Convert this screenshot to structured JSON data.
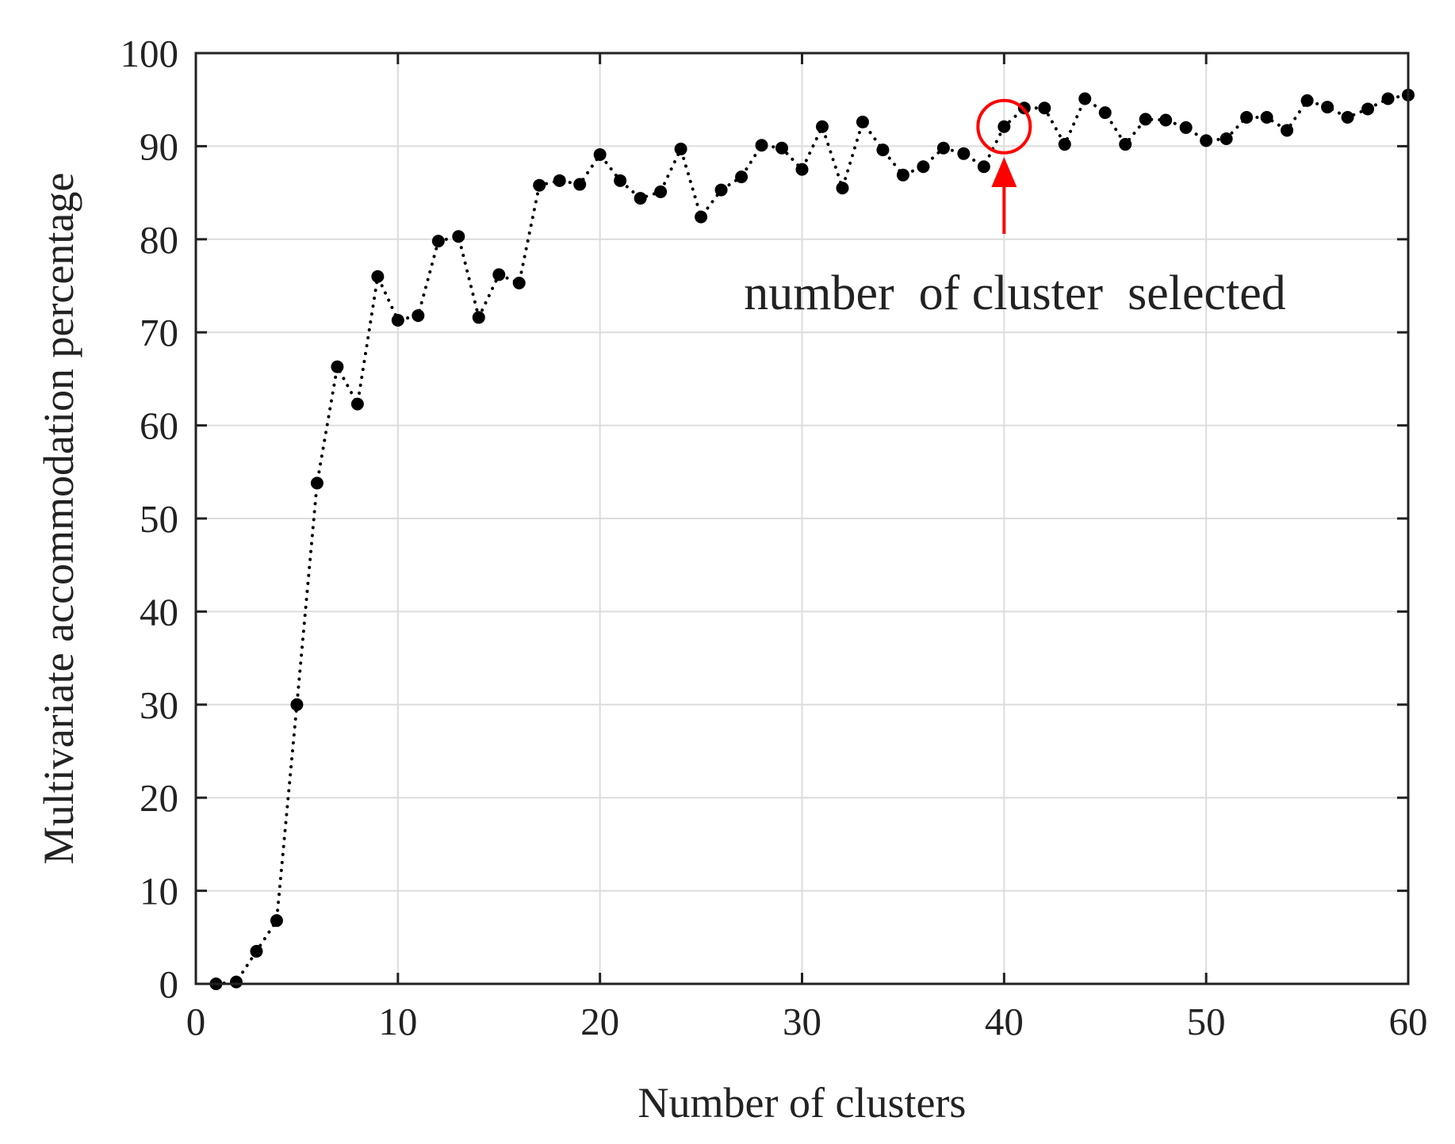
{
  "chart_data": {
    "type": "line",
    "title": "",
    "xlabel": "Number of clusters",
    "ylabel": "Multivariate accommodation percentage",
    "xlim": [
      0,
      60
    ],
    "ylim": [
      0,
      100
    ],
    "x_ticks": [
      0,
      10,
      20,
      30,
      40,
      50,
      60
    ],
    "x_tick_labels": [
      "0",
      "10",
      "20",
      "30",
      "40",
      "50",
      "60"
    ],
    "y_ticks": [
      0,
      10,
      20,
      30,
      40,
      50,
      60,
      70,
      80,
      90,
      100
    ],
    "y_tick_labels": [
      "0",
      "10",
      "20",
      "30",
      "40",
      "50",
      "60",
      "70",
      "80",
      "90",
      "100"
    ],
    "grid": true,
    "legend": "none",
    "series": [
      {
        "line_style": "dotted",
        "marker": "filled circle",
        "color": "#000000",
        "x": [
          1,
          2,
          3,
          4,
          5,
          6,
          7,
          8,
          9,
          10,
          11,
          12,
          13,
          14,
          15,
          16,
          17,
          18,
          19,
          20,
          21,
          22,
          23,
          24,
          25,
          26,
          27,
          28,
          29,
          30,
          31,
          32,
          33,
          34,
          35,
          36,
          37,
          38,
          39,
          40,
          41,
          42,
          43,
          44,
          45,
          46,
          47,
          48,
          49,
          50,
          51,
          52,
          53,
          54,
          55,
          56,
          57,
          58,
          59,
          60
        ],
        "y": [
          0,
          0.2,
          3.5,
          6.8,
          30,
          53.8,
          66.3,
          62.3,
          76,
          71.3,
          71.8,
          79.8,
          80.3,
          71.6,
          76.2,
          75.3,
          85.8,
          86.3,
          85.9,
          89.1,
          86.3,
          84.4,
          85.1,
          89.7,
          82.4,
          85.3,
          86.7,
          90.1,
          89.8,
          87.5,
          92.1,
          85.5,
          92.6,
          89.6,
          86.9,
          87.8,
          89.8,
          89.2,
          87.8,
          92.1,
          94.1,
          94.1,
          90.2,
          95.1,
          93.6,
          90.2,
          92.9,
          92.8,
          92,
          90.6,
          90.8,
          93.1,
          93.1,
          91.7,
          94.9,
          94.2,
          93.1,
          94,
          95.1,
          95.5
        ]
      }
    ],
    "annotation": {
      "text": "number  of cluster  selected",
      "target_x": 40,
      "target_y": 92.1,
      "color": "#ff0000"
    }
  }
}
